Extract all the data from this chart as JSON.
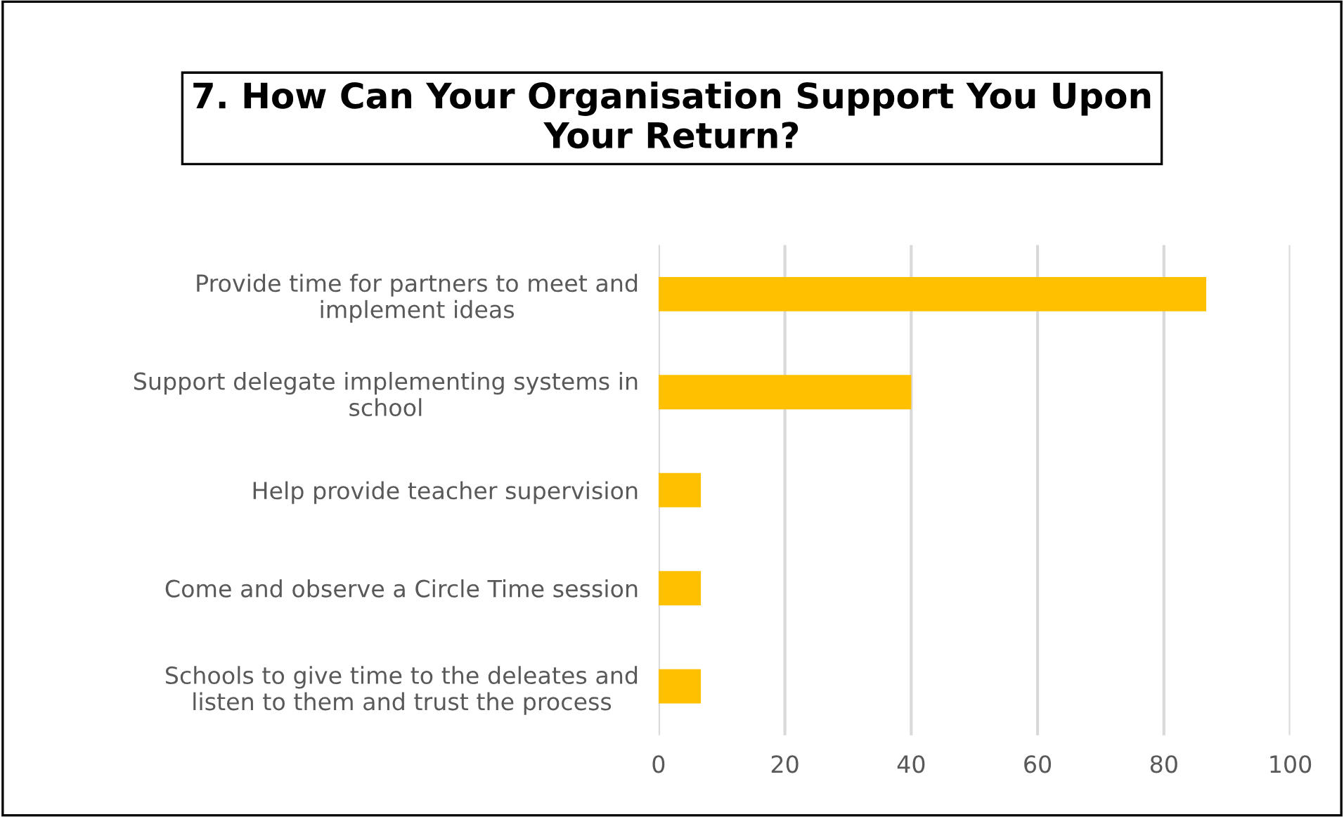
{
  "chart_data": {
    "type": "bar",
    "orientation": "horizontal",
    "title": "7. How Can Your Organisation Support You Upon\nYour Return?",
    "categories": [
      "Provide time for partners to meet and\nimplement ideas",
      "Support delegate implementing systems in\nschool",
      "Help provide teacher supervision",
      "Come and observe a Circle Time session",
      "Schools to give time to the deleates and\nlisten to them and trust the process"
    ],
    "values": [
      86.7,
      40,
      6.7,
      6.7,
      6.7
    ],
    "color": "#ffc000",
    "xlim": [
      0,
      100
    ],
    "xticks": [
      0,
      20,
      40,
      60,
      80,
      100
    ],
    "grid": "x"
  }
}
